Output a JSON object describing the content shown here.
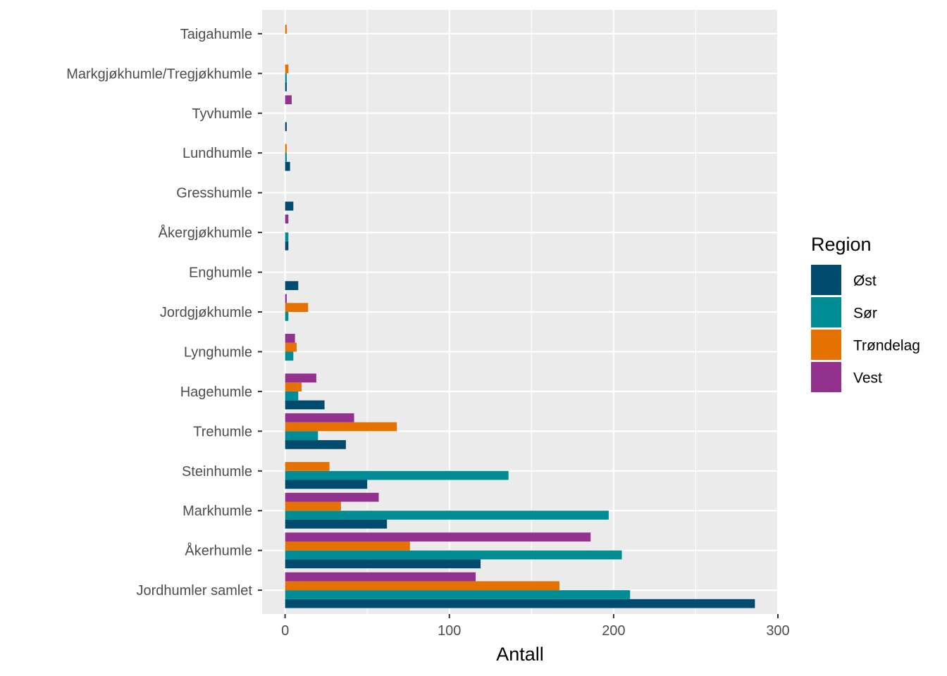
{
  "chart_data": {
    "type": "bar",
    "orientation": "horizontal",
    "xlabel": "Antall",
    "ylabel": "",
    "xlim": [
      -14,
      300
    ],
    "xticks": [
      0,
      100,
      200,
      300
    ],
    "grid": true,
    "legend": {
      "title": "Region",
      "placement": "right"
    },
    "categories": [
      "Taigahumle",
      "Markgjøkhumle/Tregjøkhumle",
      "Tyvhumle",
      "Lundhumle",
      "Gresshumle",
      "Åkergjøkhumle",
      "Enghumle",
      "Jordgjøkhumle",
      "Lynghumle",
      "Hagehumle",
      "Trehumle",
      "Steinhumle",
      "Markhumle",
      "Åkerhumle",
      "Jordhumler samlet"
    ],
    "series": [
      {
        "name": "Øst",
        "color": "#004B6E",
        "values": [
          0,
          1,
          1,
          3,
          5,
          2,
          8,
          0,
          0,
          24,
          37,
          50,
          62,
          119,
          286
        ]
      },
      {
        "name": "Sør",
        "color": "#008C95",
        "values": [
          0,
          1,
          0,
          1,
          0,
          2,
          0,
          2,
          5,
          8,
          20,
          136,
          197,
          205,
          210
        ]
      },
      {
        "name": "Trøndelag",
        "color": "#E57200",
        "values": [
          1,
          2,
          0,
          1,
          0,
          0,
          0,
          14,
          7,
          10,
          68,
          27,
          34,
          76,
          167
        ]
      },
      {
        "name": "Vest",
        "color": "#93328E",
        "values": [
          0,
          0,
          4,
          0,
          0,
          2,
          0,
          1,
          6,
          19,
          42,
          0,
          57,
          186,
          116
        ]
      }
    ]
  }
}
